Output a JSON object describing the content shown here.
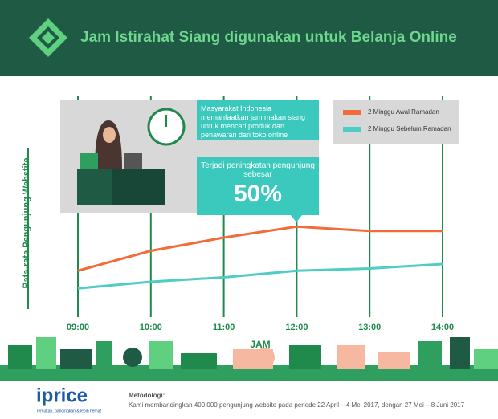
{
  "chart_data": {
    "type": "line",
    "title": "Jam Istirahat Siang digunakan untuk Belanja Online",
    "y_label": "Rata-rata Pengunjung Webstite",
    "x_label": "JAM",
    "categories": [
      "09:00",
      "10:00",
      "11:00",
      "12:00",
      "13:00",
      "14:00"
    ],
    "series": [
      {
        "name": "2 Minggu Awal Ramadan",
        "color": "#f26b3a",
        "values": [
          21,
          30,
          36,
          41,
          39,
          39
        ]
      },
      {
        "name": "2 Minggu Sebelum Ramadan",
        "color": "#4ecdc4",
        "values": [
          13,
          16,
          18,
          21,
          22,
          24
        ]
      }
    ],
    "ylim": [
      0,
      100
    ],
    "annotation": "Masyarakat Indonesia memanfaatkan jam makan siang untuk mencari produk dan penawaran dari toko online",
    "callout_text": "Terjadi peningkatan pengunjung sebesar",
    "callout_value": "50%"
  },
  "footer": {
    "brand": "iprice",
    "tagline": "Temukan, bandingkan & lebih hemat",
    "method_title": "Metodologi:",
    "method_text": "Kami membandingkan 400.000 pengunjung website pada periode 22 April – 4 Mei 2017, dengan 27 Mei – 8 Juni 2017"
  }
}
